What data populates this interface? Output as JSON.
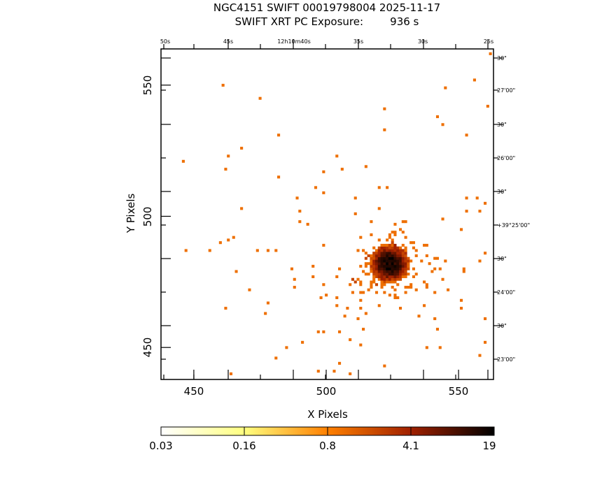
{
  "title": {
    "line1": "NGC4151 SWIFT 00019798004 2025-11-17",
    "line2": "SWIFT XRT PC Exposure:        936 s"
  },
  "chart_data": {
    "type": "heatmap",
    "title": "NGC4151 SWIFT 00019798004 2025-11-17",
    "xlabel": "X Pixels",
    "ylabel": "Y Pixels",
    "xlim": [
      437.6,
      563.2
    ],
    "ylim": [
      437.8,
      563.8
    ],
    "x_ticks": [
      "450",
      "500",
      "550"
    ],
    "x_tick_values": [
      450,
      500,
      550
    ],
    "y_ticks": [
      "450",
      "500",
      "550"
    ],
    "y_tick_values": [
      450,
      500,
      550
    ],
    "top_axis_labels": [
      "50s",
      "45s",
      "12h10m40s",
      "35s",
      "30s",
      "25s"
    ],
    "right_axis_labels": [
      "30\"",
      "27'00\"",
      "30\"",
      "26'00\"",
      "30\"",
      "+39°25'00\"",
      "30\"",
      "24'00\"",
      "30\"",
      "23'00\""
    ],
    "colorbar": {
      "scale": "log",
      "range": [
        0.03,
        19
      ],
      "tick_labels": [
        "0.03",
        "0.16",
        "0.8",
        "4.1",
        "19"
      ],
      "tick_values": [
        0.03,
        0.16,
        0.8,
        4.1,
        19
      ],
      "colors": [
        "#ffffff",
        "#ffff80",
        "#ff8000",
        "#a02000",
        "#000000"
      ]
    },
    "source": {
      "center": [
        523.8,
        481.6
      ],
      "peak_counts": 19,
      "sigma_pixels": 3.2,
      "halo_events": 150
    },
    "isolated_events": [
      [
        461.0,
        549.7
      ],
      [
        474.9,
        544.7
      ],
      [
        482.0,
        530.6
      ],
      [
        468.0,
        525.8
      ],
      [
        462.7,
        522.6
      ],
      [
        445.8,
        520.7
      ],
      [
        461.7,
        517.8
      ],
      [
        482.0,
        514.6
      ],
      [
        467.8,
        502.6
      ],
      [
        446.9,
        486.7
      ],
      [
        455.9,
        486.7
      ],
      [
        460.1,
        489.6
      ],
      [
        462.5,
        490.9
      ],
      [
        465.4,
        491.5
      ],
      [
        473.8,
        486.7
      ],
      [
        477.8,
        486.7
      ],
      [
        481.0,
        486.7
      ],
      [
        465.6,
        478.7
      ],
      [
        470.6,
        471.8
      ],
      [
        477.8,
        466.5
      ],
      [
        461.7,
        464.6
      ],
      [
        476.8,
        462.5
      ],
      [
        486.5,
        479.8
      ],
      [
        488.3,
        476.0
      ],
      [
        488.3,
        472.8
      ],
      [
        490.9,
        451.6
      ],
      [
        485.0,
        449.7
      ],
      [
        481.3,
        445.5
      ],
      [
        464.0,
        439.6
      ],
      [
        496.9,
        440.7
      ],
      [
        502.7,
        440.7
      ],
      [
        505.3,
        443.6
      ],
      [
        508.8,
        439.6
      ],
      [
        521.7,
        442.5
      ],
      [
        544.5,
        548.6
      ],
      [
        556.2,
        551.8
      ],
      [
        560.7,
        541.7
      ],
      [
        543.8,
        534.5
      ],
      [
        541.9,
        537.7
      ],
      [
        553.0,
        530.8
      ],
      [
        521.7,
        540.7
      ],
      [
        521.7,
        532.9
      ],
      [
        562.0,
        561.9
      ],
      [
        504.3,
        522.6
      ],
      [
        505.6,
        518.0
      ],
      [
        499.0,
        516.7
      ],
      [
        495.8,
        510.6
      ],
      [
        498.7,
        508.5
      ],
      [
        488.6,
        506.6
      ],
      [
        489.6,
        501.8
      ],
      [
        490.4,
        497.8
      ],
      [
        493.3,
        496.8
      ],
      [
        498.7,
        488.5
      ],
      [
        515.1,
        518.6
      ],
      [
        519.9,
        511.2
      ],
      [
        522.6,
        511.2
      ],
      [
        510.6,
        506.6
      ],
      [
        511.1,
        501.0
      ],
      [
        553.4,
        506.6
      ],
      [
        556.6,
        506.6
      ],
      [
        559.8,
        505.3
      ],
      [
        558.2,
        501.8
      ],
      [
        552.9,
        502.1
      ],
      [
        544.0,
        499.2
      ],
      [
        551.1,
        494.7
      ],
      [
        560.4,
        486.1
      ],
      [
        558.0,
        482.7
      ],
      [
        552.2,
        480.0
      ],
      [
        552.4,
        478.7
      ],
      [
        550.6,
        467.5
      ],
      [
        551.1,
        464.6
      ],
      [
        559.6,
        460.6
      ],
      [
        560.4,
        451.6
      ],
      [
        557.8,
        446.5
      ],
      [
        538.1,
        450.0
      ],
      [
        543.4,
        450.3
      ],
      [
        541.8,
        457.4
      ],
      [
        541.3,
        461.4
      ],
      [
        545.5,
        471.8
      ],
      [
        543.1,
        480.0
      ],
      [
        536.5,
        466.0
      ],
      [
        512.9,
        465.4
      ],
      [
        511.6,
        461.4
      ],
      [
        514.3,
        457.0
      ],
      [
        512.9,
        450.8
      ],
      [
        508.5,
        453.4
      ],
      [
        505.1,
        456.1
      ],
      [
        506.7,
        462.2
      ],
      [
        504.3,
        465.9
      ],
      [
        497.1,
        456.1
      ],
      [
        499.0,
        456.4
      ],
      [
        498.5,
        473.9
      ],
      [
        495.0,
        476.6
      ],
      [
        494.5,
        480.6
      ],
      [
        505.1,
        480.0
      ],
      [
        503.8,
        476.6
      ],
      [
        500.3,
        469.7
      ],
      [
        503.6,
        468.6
      ],
      [
        497.7,
        468.6
      ]
    ]
  }
}
